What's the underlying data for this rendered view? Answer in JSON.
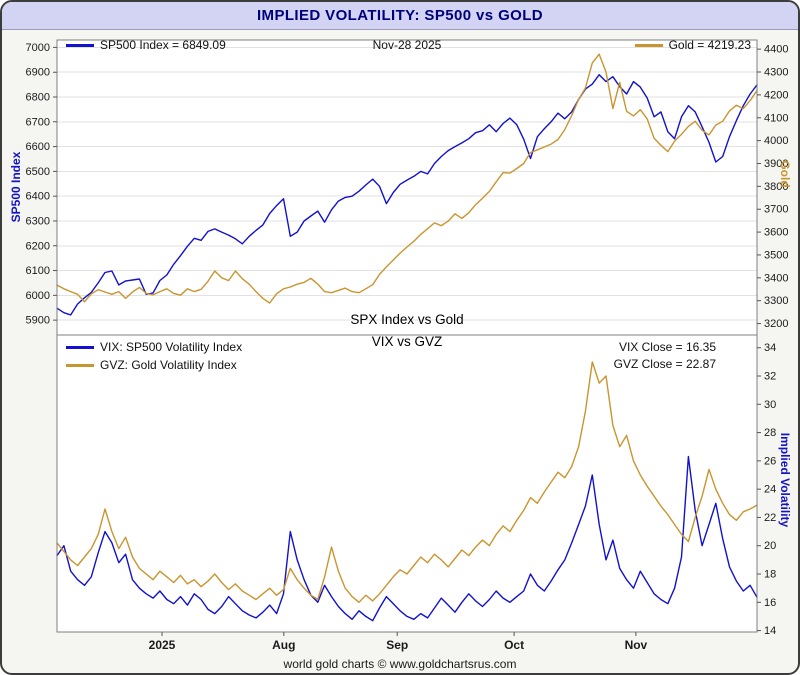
{
  "window": {
    "title": "IMPLIED VOLATILITY: SP500 vs GOLD"
  },
  "footer": {
    "text": "world gold charts © www.goldchartsrus.com"
  },
  "colors": {
    "sp500_blue": "#1212cc",
    "gold": "#c9952f",
    "axis_blue": "#1212cc",
    "title_text": "#00007d",
    "titlebar_bg": "#d3d3f3",
    "grid": "#e2e2e2"
  },
  "labels": {
    "date": "Nov-28 2025",
    "legend_sp500": "SP500 Index = 6849.09",
    "legend_gold": "Gold = 4219.23",
    "caption_top": "SPX Index vs Gold",
    "caption_bottom": "VIX vs GVZ",
    "legend_vix": "VIX: SP500 Volatility Index",
    "legend_gvz": "GVZ: Gold Volatility Index",
    "vix_close": "VIX Close = 16.35",
    "gvz_close": "GVZ Close = 22.87",
    "axis_sp500": "SP500 Index",
    "axis_gold": "Gold",
    "axis_iv": "Implied Volatility"
  },
  "x_axis": {
    "labels": [
      "2025",
      "Aug",
      "Sep",
      "Oct",
      "Nov"
    ],
    "positions": [
      0.15,
      0.324,
      0.486,
      0.653,
      0.827
    ]
  },
  "chart_data": [
    {
      "type": "line",
      "panel": "top",
      "caption": "SPX Index vs Gold",
      "date_label": "Nov-28 2025",
      "x_ticks": {
        "labels": [
          "2025",
          "Aug",
          "Sep",
          "Oct",
          "Nov"
        ],
        "positions": [
          0.15,
          0.324,
          0.486,
          0.653,
          0.827
        ]
      },
      "left_axis": {
        "label": "SP500 Index",
        "ylim": [
          5840,
          7030
        ],
        "ticks": [
          5900,
          6000,
          6100,
          6200,
          6300,
          6400,
          6500,
          6600,
          6700,
          6800,
          6900,
          7000
        ]
      },
      "right_axis": {
        "label": "Gold",
        "ylim": [
          3150,
          4440
        ],
        "ticks": [
          3200,
          3300,
          3400,
          3500,
          3600,
          3700,
          3800,
          3900,
          4000,
          4100,
          4200,
          4300,
          4400
        ]
      },
      "series": [
        {
          "name": "SP500 Index",
          "axis": "left",
          "last": 6849.09,
          "color": "#1212cc",
          "values": [
            5948,
            5930,
            5921,
            5965,
            5990,
            6012,
            6050,
            6092,
            6098,
            6042,
            6058,
            6062,
            6066,
            6004,
            6010,
            6060,
            6082,
            6125,
            6160,
            6198,
            6230,
            6222,
            6258,
            6268,
            6255,
            6243,
            6228,
            6208,
            6238,
            6262,
            6284,
            6330,
            6362,
            6390,
            6238,
            6255,
            6300,
            6320,
            6340,
            6295,
            6345,
            6380,
            6395,
            6400,
            6420,
            6445,
            6469,
            6440,
            6370,
            6415,
            6448,
            6465,
            6480,
            6500,
            6490,
            6532,
            6560,
            6584,
            6600,
            6615,
            6632,
            6656,
            6664,
            6688,
            6660,
            6693,
            6715,
            6688,
            6630,
            6552,
            6640,
            6672,
            6700,
            6735,
            6712,
            6740,
            6790,
            6832,
            6852,
            6890,
            6862,
            6882,
            6842,
            6812,
            6862,
            6840,
            6796,
            6720,
            6740,
            6660,
            6632,
            6720,
            6765,
            6740,
            6680,
            6617,
            6538,
            6560,
            6640,
            6705,
            6765,
            6812,
            6849
          ]
        },
        {
          "name": "Gold",
          "axis": "right",
          "last": 4219.23,
          "color": "#c9952f",
          "values": [
            3368,
            3352,
            3340,
            3328,
            3295,
            3330,
            3348,
            3338,
            3328,
            3340,
            3310,
            3338,
            3358,
            3332,
            3326,
            3340,
            3352,
            3332,
            3324,
            3352,
            3340,
            3350,
            3385,
            3430,
            3400,
            3388,
            3430,
            3396,
            3372,
            3340,
            3310,
            3290,
            3330,
            3352,
            3360,
            3372,
            3380,
            3398,
            3372,
            3340,
            3335,
            3345,
            3355,
            3340,
            3335,
            3352,
            3370,
            3415,
            3448,
            3478,
            3508,
            3535,
            3560,
            3590,
            3615,
            3640,
            3628,
            3648,
            3680,
            3660,
            3685,
            3720,
            3748,
            3778,
            3820,
            3860,
            3858,
            3878,
            3900,
            3948,
            3960,
            3972,
            3985,
            4005,
            4048,
            4110,
            4180,
            4230,
            4340,
            4378,
            4300,
            4140,
            4255,
            4128,
            4108,
            4135,
            4095,
            4010,
            3980,
            3952,
            3998,
            4028,
            4062,
            4085,
            4045,
            4025,
            4068,
            4085,
            4130,
            4155,
            4140,
            4175,
            4219
          ]
        }
      ]
    },
    {
      "type": "line",
      "panel": "bottom",
      "caption": "VIX vs GVZ",
      "x_ticks": {
        "labels": [
          "2025",
          "Aug",
          "Sep",
          "Oct",
          "Nov"
        ],
        "positions": [
          0.15,
          0.324,
          0.486,
          0.653,
          0.827
        ]
      },
      "right_axis": {
        "label": "Implied Volatility",
        "ylim": [
          13.9,
          34.9
        ],
        "ticks": [
          14,
          16,
          18,
          20,
          22,
          24,
          26,
          28,
          30,
          32,
          34
        ]
      },
      "vix_close": 16.35,
      "gvz_close": 22.87,
      "series": [
        {
          "name": "VIX: SP500 Volatility Index",
          "close": 16.35,
          "color": "#1212cc",
          "values": [
            19.3,
            20.0,
            18.2,
            17.6,
            17.2,
            17.8,
            19.5,
            21.0,
            20.2,
            18.8,
            19.4,
            17.6,
            17.0,
            16.6,
            16.3,
            16.8,
            16.2,
            15.9,
            16.4,
            15.8,
            16.6,
            16.2,
            15.5,
            15.2,
            15.7,
            16.4,
            15.9,
            15.4,
            15.1,
            14.9,
            15.3,
            15.8,
            15.2,
            16.6,
            21.0,
            19.0,
            17.6,
            16.5,
            16.0,
            17.2,
            16.4,
            15.7,
            15.2,
            14.8,
            15.4,
            15.0,
            14.7,
            15.6,
            16.4,
            15.9,
            15.4,
            15.0,
            14.8,
            15.2,
            14.9,
            15.6,
            16.3,
            15.8,
            15.3,
            16.0,
            16.6,
            16.1,
            15.7,
            16.2,
            16.8,
            16.3,
            16.0,
            16.4,
            16.8,
            18.0,
            17.2,
            16.8,
            17.5,
            18.3,
            19.0,
            20.2,
            21.5,
            22.8,
            25.0,
            21.5,
            19.0,
            20.4,
            18.4,
            17.6,
            17.0,
            18.2,
            17.4,
            16.6,
            16.2,
            15.9,
            17.0,
            19.2,
            26.3,
            22.5,
            20.0,
            21.5,
            23.0,
            20.5,
            18.5,
            17.5,
            16.8,
            17.2,
            16.35
          ]
        },
        {
          "name": "GVZ: Gold Volatility Index",
          "close": 22.87,
          "color": "#c9952f",
          "values": [
            20.2,
            19.6,
            19.0,
            18.6,
            19.2,
            19.8,
            20.8,
            22.6,
            21.0,
            19.8,
            20.6,
            19.2,
            18.4,
            18.0,
            17.6,
            18.2,
            17.8,
            17.4,
            17.9,
            17.3,
            17.6,
            17.1,
            17.5,
            18.0,
            17.4,
            16.9,
            17.3,
            16.8,
            16.5,
            16.2,
            16.6,
            17.0,
            16.5,
            16.9,
            18.4,
            17.6,
            17.0,
            16.5,
            16.2,
            17.8,
            19.9,
            18.2,
            17.0,
            16.4,
            16.0,
            16.5,
            16.1,
            16.6,
            17.2,
            17.8,
            18.3,
            18.0,
            18.6,
            19.2,
            18.8,
            19.4,
            19.0,
            18.5,
            19.1,
            19.7,
            19.3,
            19.9,
            20.4,
            20.0,
            20.8,
            21.4,
            21.0,
            21.8,
            22.5,
            23.4,
            23.0,
            23.8,
            24.5,
            25.2,
            24.8,
            25.6,
            27.0,
            29.5,
            33.0,
            31.5,
            32.0,
            28.5,
            27.0,
            27.8,
            26.0,
            25.0,
            24.2,
            23.5,
            22.8,
            22.2,
            21.5,
            20.8,
            20.3,
            22.0,
            23.5,
            25.4,
            24.0,
            23.0,
            22.2,
            21.8,
            22.4,
            22.6,
            22.87
          ]
        }
      ]
    }
  ]
}
